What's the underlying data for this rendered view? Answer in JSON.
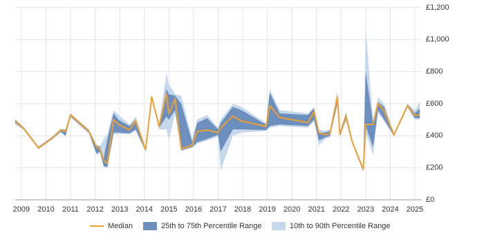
{
  "chart_data": {
    "type": "line-band",
    "x": [
      2008.75,
      2009.1,
      2009.7,
      2010.25,
      2010.6,
      2010.8,
      2011.0,
      2011.75,
      2012.05,
      2012.2,
      2012.35,
      2012.5,
      2012.75,
      2012.95,
      2013.4,
      2013.65,
      2014.05,
      2014.3,
      2014.6,
      2014.9,
      2015.0,
      2015.25,
      2015.5,
      2015.95,
      2016.15,
      2016.55,
      2017.0,
      2017.1,
      2017.6,
      2017.95,
      2018.95,
      2019.1,
      2019.5,
      2020.65,
      2020.9,
      2021.1,
      2021.35,
      2021.55,
      2021.85,
      2021.95,
      2022.2,
      2022.45,
      2022.9,
      2023.0,
      2023.3,
      2023.5,
      2023.75,
      2024.15,
      2024.7,
      2025.0,
      2025.2
    ],
    "series": [
      {
        "name": "Median",
        "color": "#f0a030",
        "values": [
          492,
          445,
          324,
          384,
          436,
          427,
          531,
          427,
          332,
          315,
          246,
          229,
          500,
          470,
          436,
          492,
          311,
          643,
          458,
          665,
          535,
          630,
          319,
          341,
          427,
          436,
          419,
          449,
          522,
          492,
          458,
          587,
          514,
          483,
          548,
          419,
          406,
          414,
          643,
          406,
          522,
          363,
          190,
          470,
          470,
          600,
          557,
          406,
          587,
          527,
          531
        ]
      },
      {
        "name": "25th to 75th Percentile Range",
        "color": "#6d8fbd",
        "low": [
          480,
          440,
          320,
          380,
          425,
          400,
          520,
          420,
          290,
          300,
          210,
          205,
          420,
          420,
          415,
          440,
          305,
          640,
          450,
          520,
          500,
          560,
          310,
          330,
          360,
          380,
          405,
          300,
          440,
          440,
          435,
          460,
          470,
          460,
          500,
          370,
          390,
          400,
          600,
          400,
          500,
          355,
          180,
          460,
          330,
          560,
          500,
          400,
          580,
          510,
          510
        ],
        "high": [
          500,
          450,
          330,
          390,
          440,
          435,
          535,
          435,
          340,
          330,
          260,
          380,
          540,
          500,
          460,
          500,
          320,
          650,
          470,
          690,
          660,
          650,
          600,
          360,
          480,
          510,
          440,
          480,
          580,
          560,
          470,
          670,
          540,
          530,
          570,
          420,
          420,
          430,
          650,
          420,
          540,
          370,
          200,
          800,
          480,
          610,
          580,
          410,
          595,
          540,
          570
        ]
      },
      {
        "name": "10th to 90th Percentile Range",
        "color": "#c6d8ec",
        "low": [
          470,
          435,
          315,
          375,
          420,
          395,
          515,
          410,
          280,
          290,
          205,
          200,
          410,
          410,
          410,
          430,
          300,
          635,
          440,
          440,
          370,
          540,
          305,
          325,
          350,
          370,
          395,
          180,
          400,
          420,
          430,
          450,
          460,
          450,
          490,
          340,
          380,
          390,
          590,
          395,
          490,
          350,
          175,
          420,
          280,
          540,
          490,
          395,
          575,
          500,
          500
        ],
        "high": [
          505,
          455,
          335,
          395,
          445,
          440,
          540,
          440,
          345,
          335,
          380,
          410,
          560,
          530,
          470,
          520,
          325,
          655,
          480,
          790,
          720,
          660,
          650,
          380,
          500,
          530,
          450,
          500,
          600,
          580,
          480,
          690,
          560,
          540,
          580,
          440,
          430,
          440,
          680,
          425,
          550,
          375,
          205,
          1070,
          500,
          640,
          600,
          415,
          600,
          560,
          610
        ]
      }
    ],
    "xlim": [
      2008.75,
      2025.28
    ],
    "xticks": [
      2009,
      2010,
      2011,
      2012,
      2013,
      2014,
      2015,
      2016,
      2017,
      2018,
      2019,
      2020,
      2021,
      2022,
      2023,
      2024,
      2025
    ],
    "ylim": [
      0,
      1200
    ],
    "yticks": [
      {
        "value": 0,
        "label": "£0"
      },
      {
        "value": 200,
        "label": "£200"
      },
      {
        "value": 400,
        "label": "£400"
      },
      {
        "value": 600,
        "label": "£600"
      },
      {
        "value": 800,
        "label": "£800"
      },
      {
        "value": 1000,
        "label": "£1,000"
      },
      {
        "value": 1200,
        "label": "£1,200"
      }
    ],
    "grid": true,
    "legend": "bottom"
  }
}
